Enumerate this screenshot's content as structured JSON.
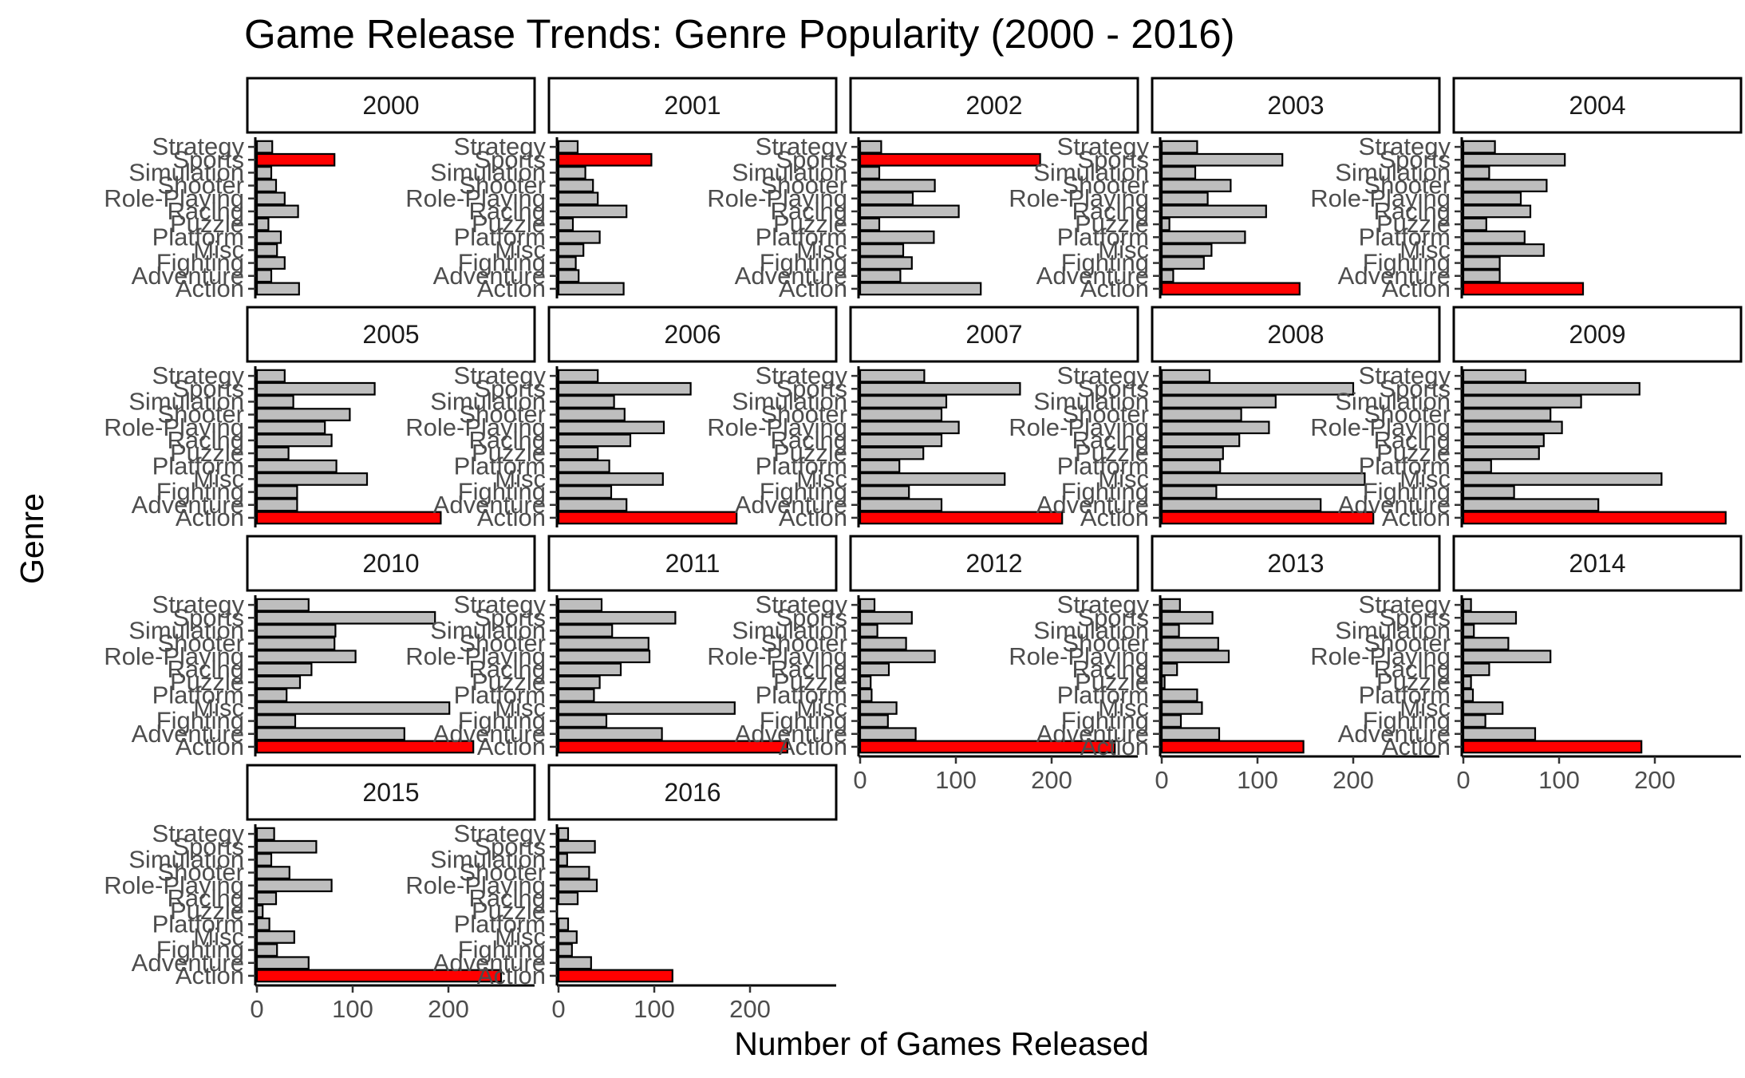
{
  "chart_data": {
    "type": "bar",
    "orientation": "horizontal",
    "title": "Game Release Trends: Genre Popularity (2000 - 2016)",
    "xlabel": "Number of Games Released",
    "ylabel": "Genre",
    "xlim": [
      0,
      290
    ],
    "x_ticks": [
      0,
      100,
      200
    ],
    "categories": [
      "Action",
      "Adventure",
      "Fighting",
      "Misc",
      "Platform",
      "Puzzle",
      "Racing",
      "Role-Playing",
      "Shooter",
      "Simulation",
      "Sports",
      "Strategy"
    ],
    "highlight_color": "#ff0000",
    "bar_color": "#bebebe",
    "outline_color": "#000000",
    "grid": false,
    "panels": [
      {
        "year": "2000",
        "values": [
          44,
          15,
          29,
          21,
          25,
          12,
          43,
          29,
          20,
          15,
          81,
          16
        ],
        "max_genre": "Sports"
      },
      {
        "year": "2001",
        "values": [
          68,
          21,
          18,
          26,
          43,
          15,
          71,
          41,
          36,
          28,
          97,
          20
        ],
        "max_genre": "Sports"
      },
      {
        "year": "2002",
        "values": [
          126,
          42,
          54,
          45,
          77,
          20,
          103,
          55,
          78,
          20,
          188,
          22
        ],
        "max_genre": "Sports"
      },
      {
        "year": "2003",
        "values": [
          144,
          12,
          44,
          52,
          87,
          8,
          109,
          48,
          72,
          35,
          126,
          37
        ],
        "max_genre": "Action"
      },
      {
        "year": "2004",
        "values": [
          125,
          38,
          38,
          84,
          64,
          24,
          70,
          60,
          87,
          27,
          106,
          33
        ],
        "max_genre": "Action"
      },
      {
        "year": "2005",
        "values": [
          192,
          42,
          42,
          115,
          83,
          33,
          78,
          71,
          97,
          38,
          123,
          29
        ],
        "max_genre": "Action"
      },
      {
        "year": "2006",
        "values": [
          186,
          71,
          55,
          109,
          53,
          41,
          75,
          110,
          69,
          58,
          138,
          41
        ],
        "max_genre": "Action"
      },
      {
        "year": "2007",
        "values": [
          211,
          85,
          51,
          151,
          41,
          66,
          85,
          103,
          85,
          90,
          167,
          67
        ],
        "max_genre": "Action"
      },
      {
        "year": "2008",
        "values": [
          221,
          166,
          57,
          212,
          61,
          64,
          81,
          112,
          83,
          119,
          200,
          50
        ],
        "max_genre": "Action"
      },
      {
        "year": "2009",
        "values": [
          274,
          141,
          53,
          207,
          29,
          79,
          84,
          103,
          91,
          123,
          184,
          65
        ],
        "max_genre": "Action"
      },
      {
        "year": "2010",
        "values": [
          226,
          154,
          40,
          201,
          31,
          45,
          57,
          103,
          81,
          82,
          186,
          54
        ],
        "max_genre": "Action"
      },
      {
        "year": "2011",
        "values": [
          239,
          108,
          50,
          184,
          37,
          43,
          65,
          95,
          94,
          56,
          122,
          45
        ],
        "max_genre": "Action"
      },
      {
        "year": "2012",
        "values": [
          266,
          58,
          29,
          38,
          12,
          11,
          30,
          78,
          48,
          18,
          54,
          15
        ],
        "max_genre": "Action"
      },
      {
        "year": "2013",
        "values": [
          148,
          60,
          20,
          42,
          37,
          3,
          16,
          70,
          59,
          18,
          53,
          19
        ],
        "max_genre": "Action"
      },
      {
        "year": "2014",
        "values": [
          186,
          75,
          23,
          41,
          10,
          8,
          27,
          91,
          47,
          11,
          55,
          8
        ],
        "max_genre": "Action"
      },
      {
        "year": "2015",
        "values": [
          255,
          54,
          21,
          39,
          13,
          6,
          20,
          78,
          34,
          15,
          62,
          18
        ],
        "max_genre": "Action"
      },
      {
        "year": "2016",
        "values": [
          119,
          34,
          14,
          19,
          10,
          0,
          20,
          40,
          32,
          9,
          38,
          10
        ],
        "max_genre": "Action"
      }
    ],
    "legend": "none"
  }
}
